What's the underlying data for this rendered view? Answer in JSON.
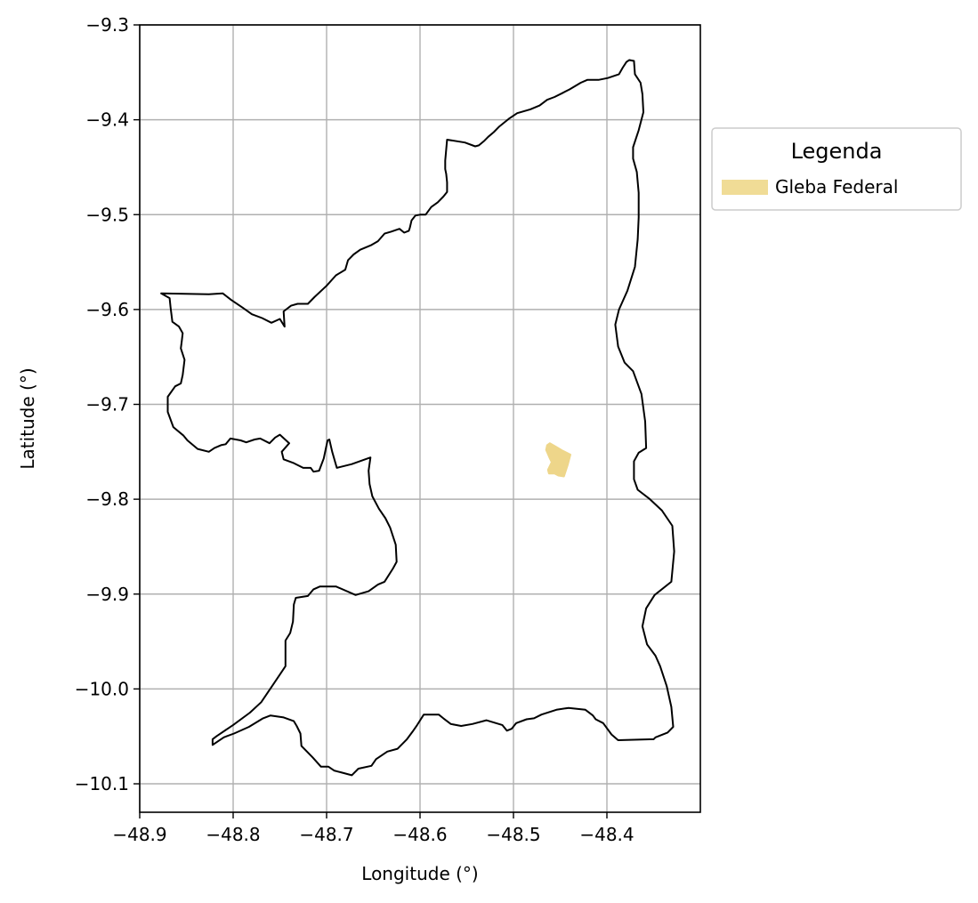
{
  "chart_data": {
    "type": "map",
    "xlabel": "Longitude (°)",
    "ylabel": "Latitude (°)",
    "xlim": [
      -48.9,
      -48.3
    ],
    "ylim": [
      -10.13,
      -9.3
    ],
    "x_ticks": [
      -48.9,
      -48.8,
      -48.7,
      -48.6,
      -48.5,
      -48.4
    ],
    "x_tick_labels": [
      "−48.9",
      "−48.8",
      "−48.7",
      "−48.6",
      "−48.5",
      "−48.4"
    ],
    "y_ticks": [
      -9.3,
      -9.4,
      -9.5,
      -9.6,
      -9.7,
      -9.8,
      -9.9,
      -10.0,
      -10.1
    ],
    "y_tick_labels": [
      "−9.3",
      "−9.4",
      "−9.5",
      "−9.6",
      "−9.7",
      "−9.8",
      "−9.9",
      "−10.0",
      "−10.1"
    ],
    "grid": true,
    "legend": {
      "title": "Legenda",
      "placement": "outside-upper-right",
      "entries": [
        {
          "label": "Gleba Federal",
          "color": "#f0dc96"
        }
      ]
    },
    "colors": {
      "boundary": "#000000",
      "gleba": "#eed68a",
      "grid": "#b0b0b0"
    },
    "boundary": [
      [
        -48.376,
        -9.337
      ],
      [
        -48.371,
        -9.338
      ],
      [
        -48.37,
        -9.352
      ],
      [
        -48.364,
        -9.361
      ],
      [
        -48.362,
        -9.373
      ],
      [
        -48.361,
        -9.392
      ],
      [
        -48.366,
        -9.411
      ],
      [
        -48.372,
        -9.429
      ],
      [
        -48.372,
        -9.441
      ],
      [
        -48.368,
        -9.455
      ],
      [
        -48.366,
        -9.477
      ],
      [
        -48.366,
        -9.503
      ],
      [
        -48.367,
        -9.526
      ],
      [
        -48.37,
        -9.555
      ],
      [
        -48.378,
        -9.58
      ],
      [
        -48.387,
        -9.6
      ],
      [
        -48.391,
        -9.616
      ],
      [
        -48.388,
        -9.639
      ],
      [
        -48.381,
        -9.656
      ],
      [
        -48.372,
        -9.665
      ],
      [
        -48.363,
        -9.689
      ],
      [
        -48.359,
        -9.718
      ],
      [
        -48.358,
        -9.746
      ],
      [
        -48.366,
        -9.751
      ],
      [
        -48.371,
        -9.76
      ],
      [
        -48.371,
        -9.779
      ],
      [
        -48.367,
        -9.79
      ],
      [
        -48.354,
        -9.8
      ],
      [
        -48.341,
        -9.812
      ],
      [
        -48.33,
        -9.828
      ],
      [
        -48.328,
        -9.855
      ],
      [
        -48.331,
        -9.887
      ],
      [
        -48.349,
        -9.901
      ],
      [
        -48.358,
        -9.915
      ],
      [
        -48.362,
        -9.934
      ],
      [
        -48.357,
        -9.953
      ],
      [
        -48.348,
        -9.965
      ],
      [
        -48.343,
        -9.976
      ],
      [
        -48.336,
        -9.997
      ],
      [
        -48.331,
        -10.019
      ],
      [
        -48.329,
        -10.04
      ],
      [
        -48.335,
        -10.046
      ],
      [
        -48.348,
        -10.051
      ],
      [
        -48.35,
        -10.053
      ],
      [
        -48.388,
        -10.054
      ],
      [
        -48.395,
        -10.048
      ],
      [
        -48.404,
        -10.036
      ],
      [
        -48.412,
        -10.032
      ],
      [
        -48.415,
        -10.028
      ],
      [
        -48.423,
        -10.022
      ],
      [
        -48.441,
        -10.02
      ],
      [
        -48.454,
        -10.022
      ],
      [
        -48.47,
        -10.027
      ],
      [
        -48.478,
        -10.031
      ],
      [
        -48.486,
        -10.032
      ],
      [
        -48.497,
        -10.036
      ],
      [
        -48.502,
        -10.042
      ],
      [
        -48.507,
        -10.044
      ],
      [
        -48.512,
        -10.038
      ],
      [
        -48.529,
        -10.033
      ],
      [
        -48.544,
        -10.037
      ],
      [
        -48.556,
        -10.039
      ],
      [
        -48.567,
        -10.037
      ],
      [
        -48.575,
        -10.031
      ],
      [
        -48.58,
        -10.027
      ],
      [
        -48.596,
        -10.027
      ],
      [
        -48.603,
        -10.038
      ],
      [
        -48.608,
        -10.045
      ],
      [
        -48.614,
        -10.053
      ],
      [
        -48.624,
        -10.063
      ],
      [
        -48.635,
        -10.066
      ],
      [
        -48.647,
        -10.074
      ],
      [
        -48.652,
        -10.081
      ],
      [
        -48.666,
        -10.084
      ],
      [
        -48.673,
        -10.091
      ],
      [
        -48.692,
        -10.086
      ],
      [
        -48.698,
        -10.082
      ],
      [
        -48.706,
        -10.082
      ],
      [
        -48.715,
        -10.072
      ],
      [
        -48.727,
        -10.06
      ],
      [
        -48.728,
        -10.047
      ],
      [
        -48.732,
        -10.039
      ],
      [
        -48.735,
        -10.034
      ],
      [
        -48.746,
        -10.03
      ],
      [
        -48.76,
        -10.028
      ],
      [
        -48.768,
        -10.031
      ],
      [
        -48.783,
        -10.04
      ],
      [
        -48.799,
        -10.047
      ],
      [
        -48.81,
        -10.051
      ],
      [
        -48.822,
        -10.059
      ],
      [
        -48.822,
        -10.053
      ],
      [
        -48.818,
        -10.05
      ],
      [
        -48.8,
        -10.038
      ],
      [
        -48.782,
        -10.025
      ],
      [
        -48.77,
        -10.014
      ],
      [
        -48.757,
        -9.995
      ],
      [
        -48.744,
        -9.976
      ],
      [
        -48.744,
        -9.966
      ],
      [
        -48.744,
        -9.949
      ],
      [
        -48.739,
        -9.941
      ],
      [
        -48.736,
        -9.929
      ],
      [
        -48.735,
        -9.911
      ],
      [
        -48.733,
        -9.904
      ],
      [
        -48.72,
        -9.902
      ],
      [
        -48.714,
        -9.895
      ],
      [
        -48.707,
        -9.892
      ],
      [
        -48.69,
        -9.892
      ],
      [
        -48.669,
        -9.901
      ],
      [
        -48.655,
        -9.897
      ],
      [
        -48.645,
        -9.89
      ],
      [
        -48.638,
        -9.887
      ],
      [
        -48.629,
        -9.873
      ],
      [
        -48.625,
        -9.866
      ],
      [
        -48.626,
        -9.848
      ],
      [
        -48.632,
        -9.83
      ],
      [
        -48.637,
        -9.82
      ],
      [
        -48.644,
        -9.81
      ],
      [
        -48.651,
        -9.797
      ],
      [
        -48.654,
        -9.784
      ],
      [
        -48.655,
        -9.77
      ],
      [
        -48.653,
        -9.756
      ],
      [
        -48.673,
        -9.763
      ],
      [
        -48.689,
        -9.767
      ],
      [
        -48.694,
        -9.75
      ],
      [
        -48.697,
        -9.737
      ],
      [
        -48.699,
        -9.738
      ],
      [
        -48.703,
        -9.757
      ],
      [
        -48.708,
        -9.77
      ],
      [
        -48.714,
        -9.771
      ],
      [
        -48.717,
        -9.767
      ],
      [
        -48.725,
        -9.767
      ],
      [
        -48.735,
        -9.762
      ],
      [
        -48.746,
        -9.758
      ],
      [
        -48.748,
        -9.75
      ],
      [
        -48.74,
        -9.741
      ],
      [
        -48.75,
        -9.732
      ],
      [
        -48.755,
        -9.735
      ],
      [
        -48.761,
        -9.741
      ],
      [
        -48.771,
        -9.736
      ],
      [
        -48.777,
        -9.737
      ],
      [
        -48.786,
        -9.74
      ],
      [
        -48.792,
        -9.738
      ],
      [
        -48.803,
        -9.736
      ],
      [
        -48.808,
        -9.742
      ],
      [
        -48.813,
        -9.743
      ],
      [
        -48.82,
        -9.746
      ],
      [
        -48.826,
        -9.75
      ],
      [
        -48.838,
        -9.747
      ],
      [
        -48.849,
        -9.738
      ],
      [
        -48.853,
        -9.733
      ],
      [
        -48.864,
        -9.724
      ],
      [
        -48.87,
        -9.708
      ],
      [
        -48.87,
        -9.692
      ],
      [
        -48.862,
        -9.681
      ],
      [
        -48.856,
        -9.678
      ],
      [
        -48.854,
        -9.669
      ],
      [
        -48.852,
        -9.653
      ],
      [
        -48.856,
        -9.641
      ],
      [
        -48.855,
        -9.633
      ],
      [
        -48.854,
        -9.625
      ],
      [
        -48.858,
        -9.618
      ],
      [
        -48.865,
        -9.613
      ],
      [
        -48.867,
        -9.598
      ],
      [
        -48.868,
        -9.588
      ],
      [
        -48.877,
        -9.583
      ],
      [
        -48.826,
        -9.584
      ],
      [
        -48.811,
        -9.583
      ],
      [
        -48.802,
        -9.59
      ],
      [
        -48.79,
        -9.598
      ],
      [
        -48.78,
        -9.605
      ],
      [
        -48.769,
        -9.609
      ],
      [
        -48.759,
        -9.614
      ],
      [
        -48.75,
        -9.61
      ],
      [
        -48.745,
        -9.618
      ],
      [
        -48.746,
        -9.602
      ],
      [
        -48.738,
        -9.596
      ],
      [
        -48.731,
        -9.594
      ],
      [
        -48.72,
        -9.594
      ],
      [
        -48.713,
        -9.587
      ],
      [
        -48.7,
        -9.575
      ],
      [
        -48.69,
        -9.564
      ],
      [
        -48.68,
        -9.558
      ],
      [
        -48.677,
        -9.548
      ],
      [
        -48.671,
        -9.542
      ],
      [
        -48.664,
        -9.537
      ],
      [
        -48.652,
        -9.532
      ],
      [
        -48.645,
        -9.528
      ],
      [
        -48.638,
        -9.52
      ],
      [
        -48.631,
        -9.518
      ],
      [
        -48.622,
        -9.515
      ],
      [
        -48.617,
        -9.519
      ],
      [
        -48.612,
        -9.517
      ],
      [
        -48.611,
        -9.514
      ],
      [
        -48.609,
        -9.506
      ],
      [
        -48.605,
        -9.501
      ],
      [
        -48.6,
        -9.5
      ],
      [
        -48.594,
        -9.5
      ],
      [
        -48.588,
        -9.492
      ],
      [
        -48.581,
        -9.487
      ],
      [
        -48.575,
        -9.481
      ],
      [
        -48.571,
        -9.476
      ],
      [
        -48.571,
        -9.466
      ],
      [
        -48.572,
        -9.457
      ],
      [
        -48.573,
        -9.452
      ],
      [
        -48.573,
        -9.443
      ],
      [
        -48.571,
        -9.421
      ],
      [
        -48.552,
        -9.424
      ],
      [
        -48.541,
        -9.428
      ],
      [
        -48.537,
        -9.427
      ],
      [
        -48.531,
        -9.422
      ],
      [
        -48.527,
        -9.418
      ],
      [
        -48.521,
        -9.413
      ],
      [
        -48.515,
        -9.407
      ],
      [
        -48.505,
        -9.399
      ],
      [
        -48.496,
        -9.393
      ],
      [
        -48.482,
        -9.389
      ],
      [
        -48.472,
        -9.385
      ],
      [
        -48.464,
        -9.379
      ],
      [
        -48.456,
        -9.376
      ],
      [
        -48.448,
        -9.372
      ],
      [
        -48.44,
        -9.368
      ],
      [
        -48.428,
        -9.361
      ],
      [
        -48.421,
        -9.358
      ],
      [
        -48.409,
        -9.358
      ],
      [
        -48.399,
        -9.356
      ],
      [
        -48.387,
        -9.352
      ],
      [
        -48.383,
        -9.345
      ],
      [
        -48.379,
        -9.339
      ],
      [
        -48.376,
        -9.337
      ]
    ],
    "gleba_federal": [
      [
        -48.461,
        -9.741
      ],
      [
        -48.454,
        -9.745
      ],
      [
        -48.447,
        -9.749
      ],
      [
        -48.439,
        -9.753
      ],
      [
        -48.442,
        -9.764
      ],
      [
        -48.446,
        -9.776
      ],
      [
        -48.452,
        -9.775
      ],
      [
        -48.456,
        -9.773
      ],
      [
        -48.462,
        -9.773
      ],
      [
        -48.463,
        -9.769
      ],
      [
        -48.459,
        -9.761
      ],
      [
        -48.461,
        -9.757
      ],
      [
        -48.465,
        -9.748
      ],
      [
        -48.464,
        -9.743
      ],
      [
        -48.461,
        -9.741
      ]
    ]
  }
}
